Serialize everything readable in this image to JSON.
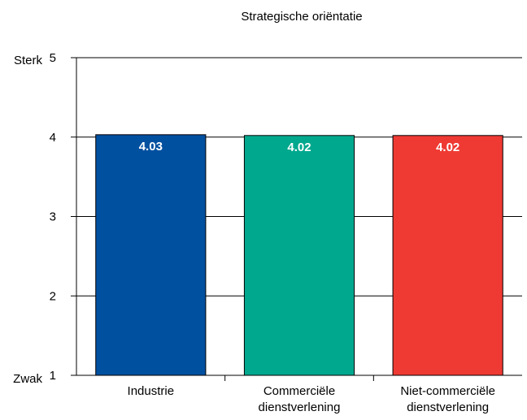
{
  "chart_data": {
    "type": "bar",
    "title": "Strategische oriëntatie",
    "categories": [
      [
        "Industrie"
      ],
      [
        "Commerciële",
        "dienstverlening"
      ],
      [
        "Niet-commerciële",
        "dienstverlening"
      ]
    ],
    "values": [
      4.03,
      4.02,
      4.02
    ],
    "data_labels": [
      "4.03",
      "4.02",
      "4.02"
    ],
    "colors": [
      "#0050a0",
      "#00a88e",
      "#ee3a33"
    ],
    "ylim": [
      1,
      5
    ],
    "yticks": [
      1,
      2,
      3,
      4,
      5
    ],
    "ytick_labels": [
      "1",
      "2",
      "3",
      "4",
      "5"
    ],
    "y_end_labels": {
      "bottom": "Zwak",
      "top": "Sterk"
    },
    "grid": true,
    "legend": "none"
  }
}
